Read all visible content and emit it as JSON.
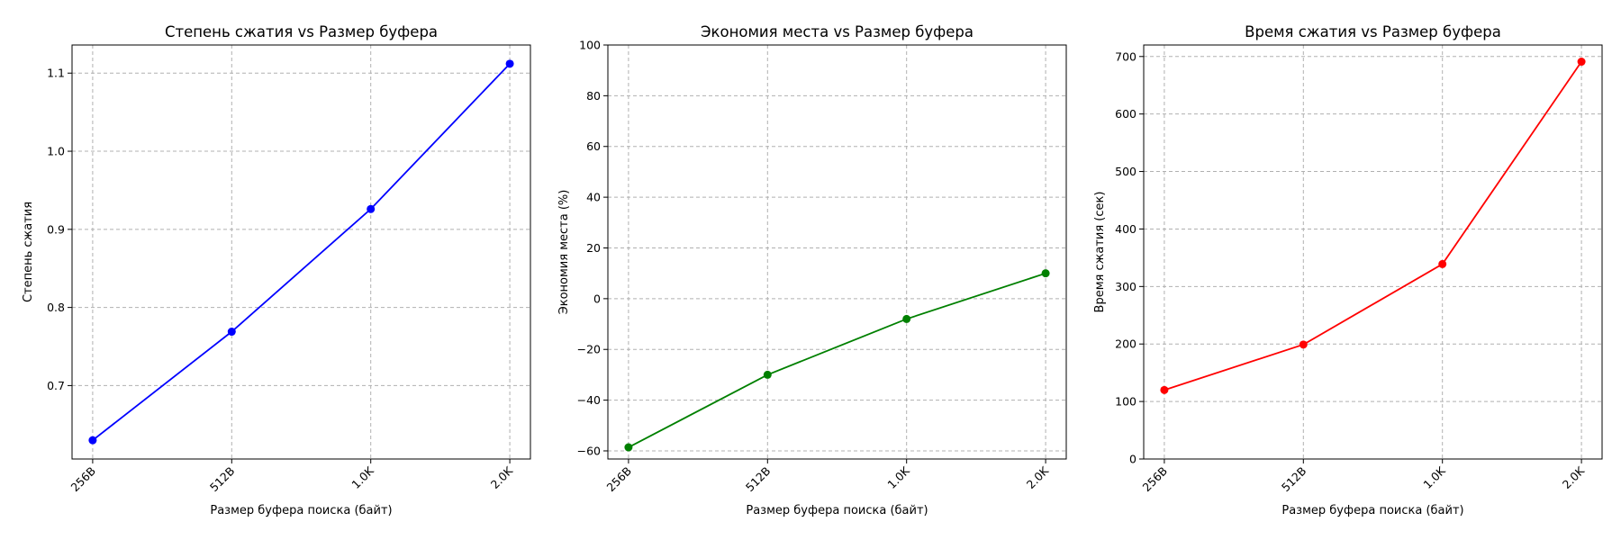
{
  "chart_data": [
    {
      "type": "line",
      "title": "Степень сжатия vs Размер буфера",
      "xlabel": "Размер буфера поиска (байт)",
      "ylabel": "Степень сжатия",
      "categories": [
        "256B",
        "512B",
        "1.0K",
        "2.0K"
      ],
      "series": [
        {
          "values": [
            0.63,
            0.769,
            0.926,
            1.112
          ],
          "color": "#0000ff"
        }
      ],
      "yticks": [
        0.7,
        0.8,
        0.9,
        1.0,
        1.1
      ],
      "ytick_labels": [
        "0.7",
        "0.8",
        "0.9",
        "1.0",
        "1.1"
      ],
      "ylim": [
        0.606,
        1.136
      ],
      "grid": true,
      "marker": "circle"
    },
    {
      "type": "line",
      "title": "Экономия места vs Размер буфера",
      "xlabel": "Размер буфера поиска (байт)",
      "ylabel": "Экономия места (%)",
      "categories": [
        "256B",
        "512B",
        "1.0K",
        "2.0K"
      ],
      "series": [
        {
          "values": [
            -58.6,
            -30.0,
            -8.0,
            10.0
          ],
          "color": "#008000"
        }
      ],
      "yticks": [
        -60,
        -40,
        -20,
        0,
        20,
        40,
        60,
        80,
        100
      ],
      "ytick_labels": [
        "−60",
        "−40",
        "−20",
        "0",
        "20",
        "40",
        "60",
        "80",
        "100"
      ],
      "ylim": [
        -63.2,
        100
      ],
      "grid": true,
      "marker": "circle"
    },
    {
      "type": "line",
      "title": "Время сжатия vs Размер буфера",
      "xlabel": "Размер буфера поиска (байт)",
      "ylabel": "Время сжатия (сек)",
      "categories": [
        "256B",
        "512B",
        "1.0K",
        "2.0K"
      ],
      "series": [
        {
          "values": [
            120,
            199,
            339,
            691
          ],
          "color": "#ff0000"
        }
      ],
      "yticks": [
        0,
        100,
        200,
        300,
        400,
        500,
        600,
        700
      ],
      "ytick_labels": [
        "0",
        "100",
        "200",
        "300",
        "400",
        "500",
        "600",
        "700"
      ],
      "ylim": [
        0,
        720
      ],
      "grid": true,
      "marker": "circle"
    }
  ]
}
